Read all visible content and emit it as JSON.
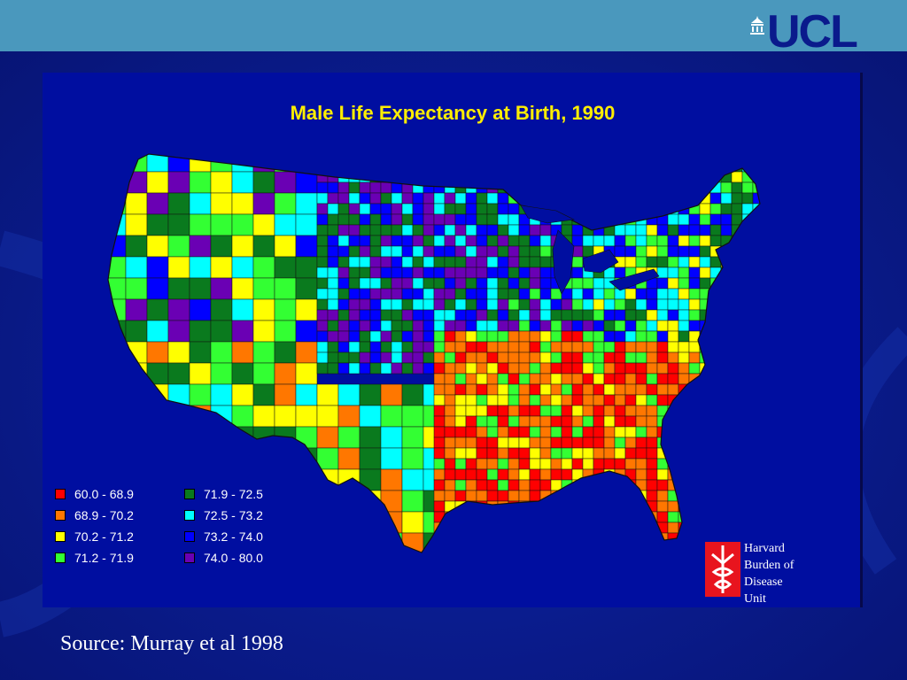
{
  "header": {
    "logo_text": "UCL"
  },
  "map": {
    "title": "Male Life Expectancy at Birth, 1990",
    "legend": [
      {
        "label": "60.0 - 68.9",
        "color": "#ff0000"
      },
      {
        "label": "68.9 - 70.2",
        "color": "#ff7700"
      },
      {
        "label": "70.2 - 71.2",
        "color": "#ffff00"
      },
      {
        "label": "71.2 - 71.9",
        "color": "#33ff33"
      },
      {
        "label": "71.9 - 72.5",
        "color": "#0a7a1e"
      },
      {
        "label": "72.5 - 73.2",
        "color": "#00ffff"
      },
      {
        "label": "73.2 - 74.0",
        "color": "#0000ff"
      },
      {
        "label": "74.0 - 80.0",
        "color": "#6a00b4"
      }
    ],
    "region_pattern": {
      "north": [
        "#0000ff",
        "#0a7a1e",
        "#00ffff",
        "#6a00b4",
        "#33ff33"
      ],
      "west": [
        "#00ffff",
        "#0000ff",
        "#ffff00",
        "#33ff33",
        "#0a7a1e",
        "#6a00b4"
      ],
      "plains": [
        "#6a00b4",
        "#0000ff",
        "#00ffff",
        "#0a7a1e"
      ],
      "south": [
        "#ff0000",
        "#ff7700",
        "#ff0000",
        "#ffff00",
        "#ff7700",
        "#33ff33"
      ],
      "southwest": [
        "#ffff00",
        "#33ff33",
        "#00ffff",
        "#0a7a1e",
        "#ff7700"
      ],
      "northeast": [
        "#0000ff",
        "#0a7a1e",
        "#00ffff",
        "#33ff33",
        "#ffff00"
      ]
    }
  },
  "institution": {
    "logo_text": "Harvard\nBurden of\nDisease\nUnit"
  },
  "source": {
    "caption": "Source: Murray et al 1998"
  }
}
